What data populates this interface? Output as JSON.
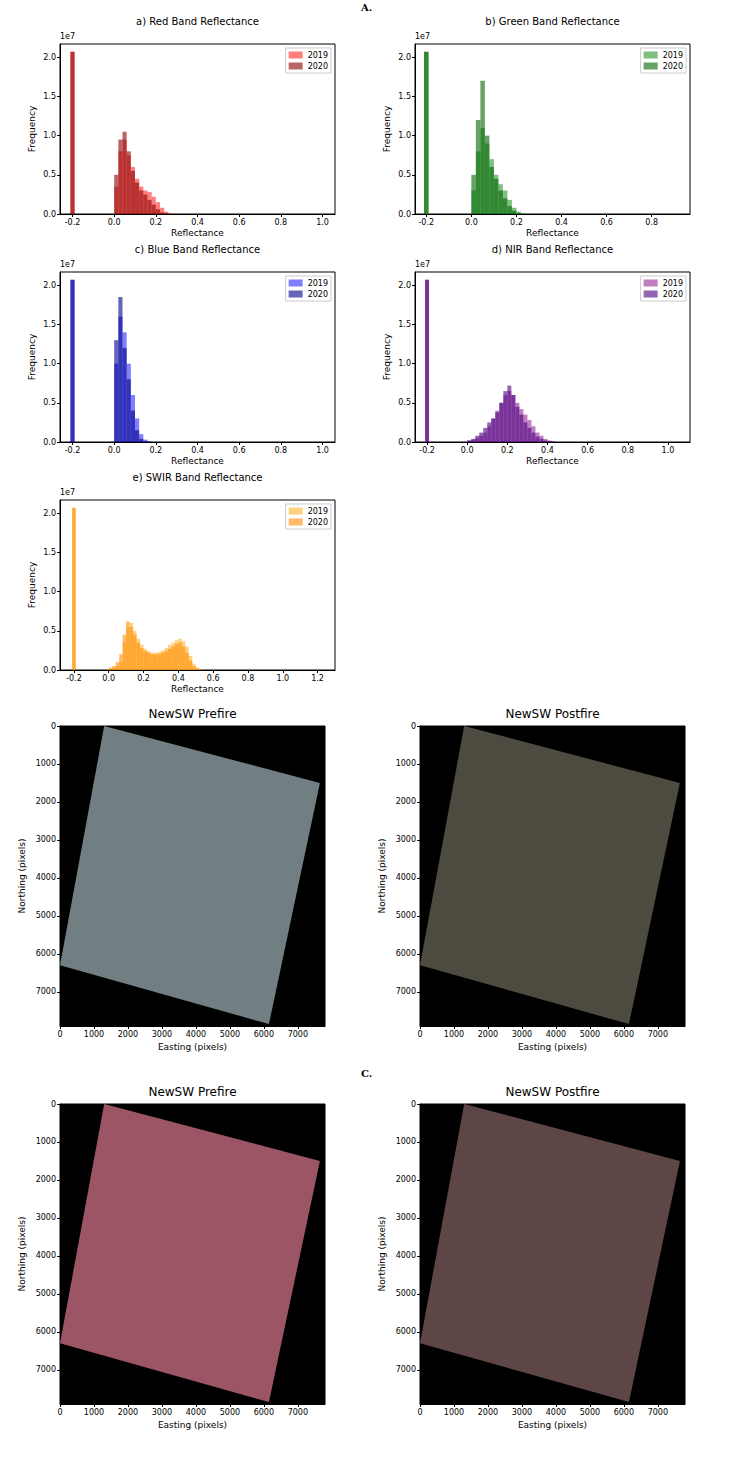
{
  "section_labels": [
    "A.",
    "C."
  ],
  "chart_data": [
    {
      "type": "histogram",
      "title": "a) Red Band Reflectance",
      "xlabel": "Reflectance",
      "ylabel": "Frequency",
      "y_scale_label": "1e7",
      "bins": [
        -0.21,
        -0.19,
        0,
        0.02,
        0.04,
        0.06,
        0.08,
        0.1,
        0.12,
        0.14,
        0.16,
        0.18,
        0.2,
        0.22,
        0.24,
        0.26,
        0.28,
        0.3,
        0.32,
        0.34,
        0.36,
        0.38,
        0.4,
        0.42,
        0.44,
        0.46,
        0.48,
        0.5,
        0.52,
        0.54
      ],
      "series": [
        {
          "name": "2019",
          "color": "#ff0000",
          "values": [
            2.07,
            0,
            0.35,
            0.8,
            0.95,
            0.75,
            0.6,
            0.45,
            0.35,
            0.3,
            0.28,
            0.22,
            0.15,
            0.08,
            0.03,
            0.01,
            0,
            0,
            0,
            0,
            0,
            0,
            0,
            0,
            0,
            0,
            0,
            0,
            0
          ]
        },
        {
          "name": "2020",
          "color": "#8b0000",
          "values": [
            2.07,
            0,
            0.5,
            0.95,
            1.05,
            0.8,
            0.55,
            0.4,
            0.3,
            0.25,
            0.18,
            0.12,
            0.06,
            0.02,
            0.01,
            0,
            0,
            0,
            0,
            0,
            0,
            0,
            0,
            0,
            0,
            0,
            0,
            0,
            0
          ]
        }
      ],
      "xlim": [
        -0.26,
        1.06
      ],
      "ylim": [
        0,
        2.17
      ],
      "xticks": [
        -0.2,
        {
          "value": 0,
          "label": "0.0"
        },
        0.2,
        0.4,
        0.6,
        0.8,
        {
          "value": 1,
          "label": "1.0"
        }
      ],
      "yticks": [
        {
          "value": 0,
          "label": "0.0"
        },
        0.5,
        {
          "value": 1,
          "label": "1.0"
        },
        1.5,
        {
          "value": 2,
          "label": "2.0"
        }
      ],
      "legend": "upper right",
      "grid": false
    },
    {
      "type": "histogram",
      "title": "b) Green Band Reflectance",
      "xlabel": "Reflectance",
      "ylabel": "Frequency",
      "y_scale_label": "1e7",
      "bins": [
        -0.21,
        -0.19,
        0,
        0.02,
        0.04,
        0.06,
        0.08,
        0.1,
        0.12,
        0.14,
        0.16,
        0.18,
        0.2,
        0.22,
        0.24,
        0.26,
        0.28,
        0.3,
        0.32,
        0.34,
        0.36,
        0.38,
        0.4,
        0.42,
        0.44,
        0.46,
        0.48,
        0.5,
        0.52,
        0.54
      ],
      "series": [
        {
          "name": "2019",
          "color": "#008000",
          "values": [
            2.07,
            0,
            0.3,
            0.8,
            1.1,
            0.9,
            0.7,
            0.5,
            0.38,
            0.3,
            0.18,
            0.08,
            0.03,
            0.01,
            0,
            0,
            0,
            0,
            0,
            0,
            0,
            0,
            0,
            0,
            0,
            0,
            0,
            0,
            0
          ]
        },
        {
          "name": "2020",
          "color": "#006400",
          "values": [
            2.07,
            0,
            0.5,
            1.2,
            1.7,
            1.0,
            0.6,
            0.45,
            0.3,
            0.2,
            0.1,
            0.04,
            0.01,
            0,
            0,
            0,
            0,
            0,
            0,
            0,
            0,
            0,
            0,
            0,
            0,
            0,
            0,
            0,
            0
          ]
        }
      ],
      "xlim": [
        -0.25,
        0.97
      ],
      "ylim": [
        0,
        2.17
      ],
      "xticks": [
        -0.2,
        {
          "value": 0,
          "label": "0.0"
        },
        0.2,
        0.4,
        0.6,
        0.8
      ],
      "yticks": [
        {
          "value": 0,
          "label": "0.0"
        },
        0.5,
        {
          "value": 1,
          "label": "1.0"
        },
        1.5,
        {
          "value": 2,
          "label": "2.0"
        }
      ],
      "legend": "upper right",
      "grid": false
    },
    {
      "type": "histogram",
      "title": "c) Blue Band Reflectance",
      "xlabel": "Reflectance",
      "ylabel": "Frequency",
      "y_scale_label": "1e7",
      "bins": [
        -0.21,
        -0.19,
        0,
        0.02,
        0.04,
        0.06,
        0.08,
        0.1,
        0.12,
        0.14,
        0.16,
        0.18,
        0.2,
        0.22,
        0.24,
        0.26,
        0.28,
        0.3,
        0.32,
        0.34,
        0.36,
        0.38,
        0.4,
        0.42,
        0.44,
        0.46,
        0.48,
        0.5,
        0.52,
        0.54
      ],
      "series": [
        {
          "name": "2019",
          "color": "#0000ff",
          "values": [
            2.07,
            0,
            1.0,
            1.6,
            1.4,
            1.0,
            0.6,
            0.3,
            0.1,
            0.03,
            0.01,
            0,
            0,
            0,
            0,
            0,
            0,
            0,
            0,
            0,
            0,
            0,
            0,
            0,
            0,
            0,
            0,
            0,
            0
          ]
        },
        {
          "name": "2020",
          "color": "#00008b",
          "values": [
            2.07,
            0,
            1.3,
            1.85,
            1.2,
            0.8,
            0.4,
            0.15,
            0.04,
            0.01,
            0,
            0,
            0,
            0,
            0,
            0,
            0,
            0,
            0,
            0,
            0,
            0,
            0,
            0,
            0,
            0,
            0,
            0,
            0
          ]
        }
      ],
      "xlim": [
        -0.26,
        1.06
      ],
      "ylim": [
        0,
        2.17
      ],
      "xticks": [
        -0.2,
        {
          "value": 0,
          "label": "0.0"
        },
        0.2,
        0.4,
        0.6,
        0.8,
        {
          "value": 1,
          "label": "1.0"
        }
      ],
      "yticks": [
        {
          "value": 0,
          "label": "0.0"
        },
        0.5,
        {
          "value": 1,
          "label": "1.0"
        },
        1.5,
        {
          "value": 2,
          "label": "2.0"
        }
      ],
      "legend": "upper right",
      "grid": false
    },
    {
      "type": "histogram",
      "title": "d) NIR Band Reflectance",
      "xlabel": "Reflectance",
      "ylabel": "Frequency",
      "y_scale_label": "1e7",
      "bins": [
        -0.21,
        -0.19,
        0,
        0.02,
        0.04,
        0.06,
        0.08,
        0.1,
        0.12,
        0.14,
        0.16,
        0.18,
        0.2,
        0.22,
        0.24,
        0.26,
        0.28,
        0.3,
        0.32,
        0.34,
        0.36,
        0.38,
        0.4,
        0.42,
        0.44,
        0.46,
        0.48,
        0.5,
        0.52,
        0.54
      ],
      "series": [
        {
          "name": "2019",
          "color": "#800080",
          "values": [
            2.07,
            0,
            0.02,
            0.03,
            0.05,
            0.08,
            0.12,
            0.2,
            0.3,
            0.4,
            0.5,
            0.6,
            0.65,
            0.6,
            0.5,
            0.42,
            0.35,
            0.28,
            0.2,
            0.12,
            0.08,
            0.04,
            0.02,
            0.01,
            0,
            0,
            0,
            0,
            0
          ]
        },
        {
          "name": "2020",
          "color": "#4b0082",
          "values": [
            2.07,
            0,
            0.02,
            0.04,
            0.08,
            0.12,
            0.18,
            0.25,
            0.3,
            0.38,
            0.5,
            0.65,
            0.72,
            0.6,
            0.45,
            0.35,
            0.25,
            0.18,
            0.12,
            0.07,
            0.04,
            0.02,
            0.01,
            0,
            0,
            0,
            0,
            0,
            0
          ]
        }
      ],
      "xlim": [
        -0.26,
        1.11
      ],
      "ylim": [
        0,
        2.17
      ],
      "xticks": [
        -0.2,
        {
          "value": 0,
          "label": "0.0"
        },
        0.2,
        0.4,
        0.6,
        0.8,
        {
          "value": 1,
          "label": "1.0"
        }
      ],
      "yticks": [
        {
          "value": 0,
          "label": "0.0"
        },
        0.5,
        {
          "value": 1,
          "label": "1.0"
        },
        1.5,
        {
          "value": 2,
          "label": "2.0"
        }
      ],
      "legend": "upper right",
      "grid": false
    },
    {
      "type": "histogram",
      "title": "e) SWIR Band Reflectance",
      "xlabel": "Reflectance",
      "ylabel": "Frequency",
      "y_scale_label": "1e7",
      "bins": [
        -0.21,
        -0.19,
        0,
        0.02,
        0.04,
        0.06,
        0.08,
        0.1,
        0.12,
        0.14,
        0.16,
        0.18,
        0.2,
        0.22,
        0.24,
        0.26,
        0.28,
        0.3,
        0.32,
        0.34,
        0.36,
        0.38,
        0.4,
        0.42,
        0.44,
        0.46,
        0.48,
        0.5,
        0.52,
        0.54
      ],
      "series": [
        {
          "name": "2019",
          "color": "#ffa500",
          "values": [
            2.07,
            0,
            0.02,
            0.03,
            0.05,
            0.1,
            0.35,
            0.55,
            0.6,
            0.5,
            0.4,
            0.32,
            0.27,
            0.24,
            0.22,
            0.22,
            0.23,
            0.25,
            0.28,
            0.32,
            0.35,
            0.38,
            0.4,
            0.37,
            0.3,
            0.18,
            0.08,
            0.03,
            0.01
          ]
        },
        {
          "name": "2020",
          "color": "#ff8c00",
          "values": [
            2.07,
            0,
            0.03,
            0.05,
            0.1,
            0.2,
            0.45,
            0.62,
            0.55,
            0.45,
            0.35,
            0.28,
            0.24,
            0.22,
            0.2,
            0.2,
            0.2,
            0.22,
            0.24,
            0.27,
            0.3,
            0.33,
            0.35,
            0.3,
            0.22,
            0.12,
            0.05,
            0.02,
            0
          ]
        }
      ],
      "xlim": [
        -0.28,
        1.3
      ],
      "ylim": [
        0,
        2.17
      ],
      "xticks": [
        -0.2,
        {
          "value": 0,
          "label": "0.0"
        },
        0.2,
        0.4,
        0.6,
        0.8,
        {
          "value": 1,
          "label": "1.0"
        },
        1.2
      ],
      "yticks": [
        {
          "value": 0,
          "label": "0.0"
        },
        0.5,
        {
          "value": 1,
          "label": "1.0"
        },
        1.5,
        {
          "value": 2,
          "label": "2.0"
        }
      ],
      "legend": "upper right",
      "grid": false
    },
    {
      "type": "image",
      "title": "NewSW Prefire",
      "xlabel": "Easting (pixels)",
      "ylabel": "Northing (pixels)",
      "footprint": [
        [
          1300,
          0
        ],
        [
          7650,
          1500
        ],
        [
          6150,
          7850
        ],
        [
          0,
          6300
        ]
      ],
      "color": "#717f83",
      "xlim": [
        0,
        7800
      ],
      "ylim": [
        7900,
        0
      ],
      "xticks": [
        0,
        1000,
        2000,
        3000,
        4000,
        5000,
        6000,
        7000
      ],
      "yticks": [
        0,
        1000,
        2000,
        3000,
        4000,
        5000,
        6000,
        7000
      ],
      "grid": false
    },
    {
      "type": "image",
      "title": "NewSW Postfire",
      "xlabel": "Easting (pixels)",
      "ylabel": "Northing (pixels)",
      "footprint": [
        [
          1300,
          0
        ],
        [
          7650,
          1500
        ],
        [
          6150,
          7850
        ],
        [
          0,
          6300
        ]
      ],
      "color": "#4d4a3f",
      "xlim": [
        0,
        7800
      ],
      "ylim": [
        7900,
        0
      ],
      "xticks": [
        0,
        1000,
        2000,
        3000,
        4000,
        5000,
        6000,
        7000
      ],
      "yticks": [
        0,
        1000,
        2000,
        3000,
        4000,
        5000,
        6000,
        7000
      ],
      "grid": false
    },
    {
      "type": "image",
      "title": "NewSW Prefire",
      "xlabel": "Easting (pixels)",
      "ylabel": "Northing (pixels)",
      "footprint": [
        [
          1300,
          0
        ],
        [
          7650,
          1500
        ],
        [
          6150,
          7850
        ],
        [
          0,
          6300
        ]
      ],
      "color": "#9b5565",
      "xlim": [
        0,
        7800
      ],
      "ylim": [
        7900,
        0
      ],
      "xticks": [
        0,
        1000,
        2000,
        3000,
        4000,
        5000,
        6000,
        7000
      ],
      "yticks": [
        0,
        1000,
        2000,
        3000,
        4000,
        5000,
        6000,
        7000
      ],
      "grid": false
    },
    {
      "type": "image",
      "title": "NewSW Postfire",
      "xlabel": "Easting (pixels)",
      "ylabel": "Northing (pixels)",
      "footprint": [
        [
          1300,
          0
        ],
        [
          7650,
          1500
        ],
        [
          6150,
          7850
        ],
        [
          0,
          6300
        ]
      ],
      "color": "#5f4646",
      "xlim": [
        0,
        7800
      ],
      "ylim": [
        7900,
        0
      ],
      "xticks": [
        0,
        1000,
        2000,
        3000,
        4000,
        5000,
        6000,
        7000
      ],
      "yticks": [
        0,
        1000,
        2000,
        3000,
        4000,
        5000,
        6000,
        7000
      ],
      "grid": false
    }
  ]
}
